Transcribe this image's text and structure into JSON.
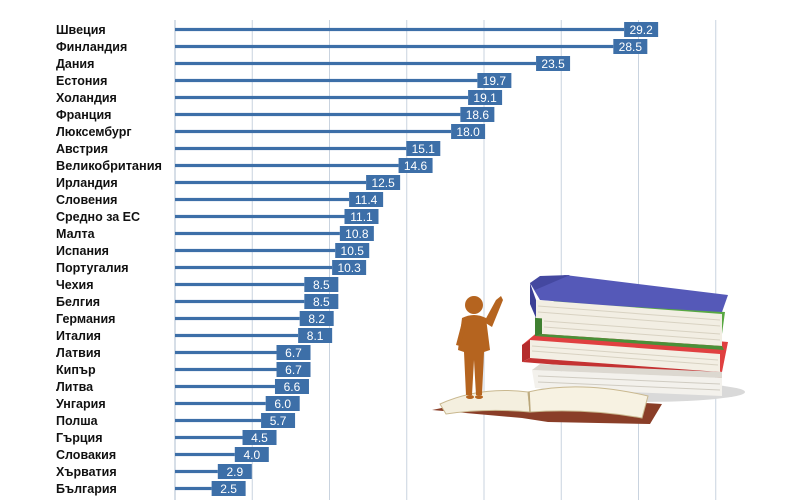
{
  "chart_data": {
    "type": "bar",
    "orientation": "horizontal",
    "categories": [
      "Швеция",
      "Финландия",
      "Дания",
      "Естония",
      "Холандия",
      "Франция",
      "Люксембург",
      "Австрия",
      "Великобритания",
      "Ирландия",
      "Словения",
      "Средно за ЕС",
      "Малта",
      "Испания",
      "Португалия",
      "Чехия",
      "Белгия",
      "Германия",
      "Италия",
      "Латвия",
      "Кипър",
      "Литва",
      "Унгария",
      "Полша",
      "Гърция",
      "Словакия",
      "Хърватия",
      "България"
    ],
    "values": [
      29.2,
      28.5,
      23.5,
      19.7,
      19.1,
      18.6,
      18.0,
      15.1,
      14.6,
      12.5,
      11.4,
      11.1,
      10.8,
      10.5,
      10.3,
      8.5,
      8.5,
      8.2,
      8.1,
      6.7,
      6.7,
      6.6,
      6.0,
      5.7,
      4.5,
      4.0,
      2.9,
      2.5
    ],
    "value_labels": [
      "29.2",
      "28.5",
      "23.5",
      "19.7",
      "19.1",
      "18.6",
      "18.0",
      "15.1",
      "14.6",
      "12.5",
      "11.4",
      "11.1",
      "10.8",
      "10.5",
      "10.3",
      "8.5",
      "8.5",
      "8.2",
      "8.1",
      "6.7",
      "6.7",
      "6.6",
      "6.0",
      "5.7",
      "4.5",
      "4.0",
      "2.9",
      "2.5"
    ],
    "xlim": [
      0,
      35
    ],
    "grid": true,
    "bar_color": "#3d6fa8",
    "label_box_color": "#3d6fa8",
    "grid_color": "#c9d3df"
  },
  "illustration": {
    "name": "figure-pointing-at-books",
    "colors": {
      "figure": "#b5641f",
      "book_blue": "#4a4fa8",
      "book_green": "#4f9a3a",
      "book_red": "#d43a3a",
      "pages": "#f0ebdd",
      "open_book_cover": "#8a3e28"
    }
  }
}
